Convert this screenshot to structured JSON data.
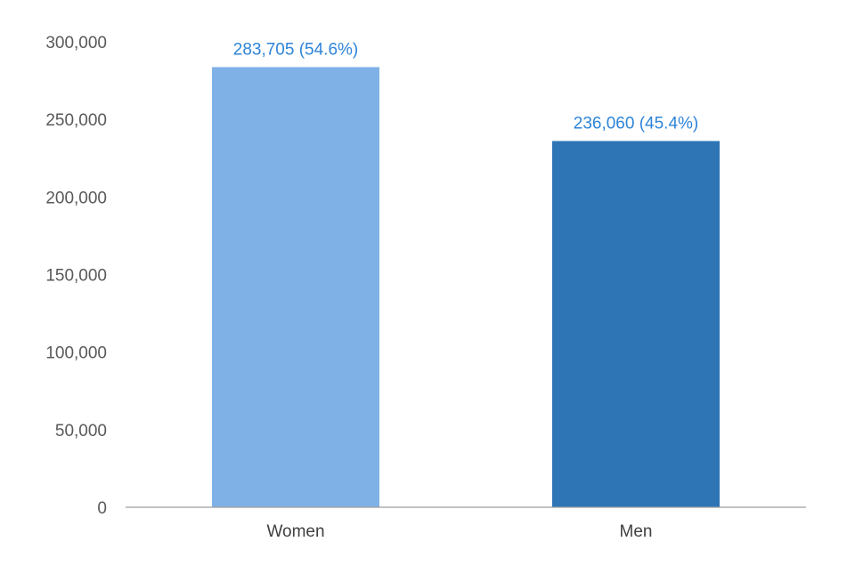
{
  "chart_data": {
    "type": "bar",
    "title": "",
    "xlabel": "",
    "ylabel": "",
    "categories": [
      "Women",
      "Men"
    ],
    "values": [
      283705,
      236060
    ],
    "data_labels": [
      "283,705 (54.6%)",
      "236,060 (45.4%)"
    ],
    "ylim": [
      0,
      300000
    ],
    "yticks": [
      0,
      50000,
      100000,
      150000,
      200000,
      250000,
      300000
    ],
    "ytick_labels": [
      "0",
      "50,000",
      "100,000",
      "150,000",
      "200,000",
      "250,000",
      "300,000"
    ],
    "grid": false,
    "legend": "none",
    "bar_colors": [
      "#7fb1e6",
      "#2e75b6"
    ],
    "data_label_color": "#2e84d8",
    "axis_color": "#9e9e9e"
  }
}
